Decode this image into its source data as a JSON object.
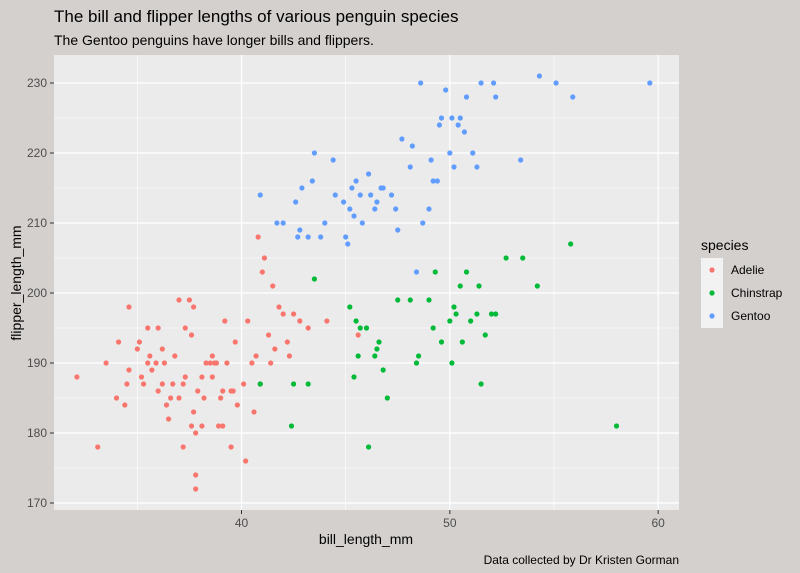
{
  "chart_data": {
    "type": "scatter",
    "title": "The bill and flipper lengths of various penguin species",
    "subtitle": "The Gentoo penguins have longer bills and flippers.",
    "caption": "Data collected by Dr Kristen Gorman",
    "xlabel": "bill_length_mm",
    "ylabel": "flipper_length_mm",
    "xlim": [
      31,
      61
    ],
    "ylim": [
      169,
      234
    ],
    "x_ticks": [
      40,
      50,
      60
    ],
    "y_ticks": [
      170,
      180,
      190,
      200,
      210,
      220,
      230
    ],
    "grid": true,
    "legend": {
      "title": "species",
      "position": "right"
    },
    "series": [
      {
        "name": "Adelie",
        "color": "#f8766d",
        "points": [
          [
            32.1,
            188
          ],
          [
            33.1,
            178
          ],
          [
            33.5,
            190
          ],
          [
            34.0,
            185
          ],
          [
            34.1,
            193
          ],
          [
            34.4,
            184
          ],
          [
            34.5,
            187
          ],
          [
            34.6,
            198
          ],
          [
            34.6,
            189
          ],
          [
            35.0,
            192
          ],
          [
            35.1,
            193
          ],
          [
            35.2,
            188
          ],
          [
            35.3,
            187
          ],
          [
            35.5,
            195
          ],
          [
            35.5,
            190
          ],
          [
            35.6,
            191
          ],
          [
            35.7,
            189
          ],
          [
            35.9,
            190
          ],
          [
            36.0,
            186
          ],
          [
            36.0,
            195
          ],
          [
            36.2,
            187
          ],
          [
            36.2,
            192
          ],
          [
            36.3,
            190
          ],
          [
            36.4,
            184
          ],
          [
            36.5,
            182
          ],
          [
            36.6,
            185
          ],
          [
            36.7,
            187
          ],
          [
            36.8,
            191
          ],
          [
            37.0,
            185
          ],
          [
            37.0,
            199
          ],
          [
            37.2,
            178
          ],
          [
            37.2,
            187
          ],
          [
            37.3,
            195
          ],
          [
            37.3,
            188
          ],
          [
            37.5,
            199
          ],
          [
            37.6,
            181
          ],
          [
            37.6,
            194
          ],
          [
            37.7,
            183
          ],
          [
            37.7,
            198
          ],
          [
            37.8,
            174
          ],
          [
            37.8,
            172
          ],
          [
            37.8,
            180
          ],
          [
            37.9,
            186
          ],
          [
            38.1,
            181
          ],
          [
            38.1,
            188
          ],
          [
            38.2,
            185
          ],
          [
            38.3,
            190
          ],
          [
            38.5,
            190
          ],
          [
            38.6,
            191
          ],
          [
            38.6,
            188
          ],
          [
            38.7,
            190
          ],
          [
            38.8,
            190
          ],
          [
            38.9,
            181
          ],
          [
            39.0,
            185
          ],
          [
            39.1,
            181
          ],
          [
            39.1,
            186
          ],
          [
            39.2,
            196
          ],
          [
            39.3,
            190
          ],
          [
            39.5,
            178
          ],
          [
            39.5,
            186
          ],
          [
            39.6,
            186
          ],
          [
            39.7,
            193
          ],
          [
            39.8,
            184
          ],
          [
            40.1,
            187
          ],
          [
            40.2,
            176
          ],
          [
            40.3,
            196
          ],
          [
            40.5,
            190
          ],
          [
            40.6,
            183
          ],
          [
            40.7,
            191
          ],
          [
            40.8,
            208
          ],
          [
            40.9,
            187
          ],
          [
            41.0,
            203
          ],
          [
            41.1,
            205
          ],
          [
            41.3,
            194
          ],
          [
            41.4,
            190
          ],
          [
            41.5,
            201
          ],
          [
            41.6,
            192
          ],
          [
            41.8,
            198
          ],
          [
            42.0,
            197
          ],
          [
            42.2,
            193
          ],
          [
            42.3,
            191
          ],
          [
            42.5,
            197
          ],
          [
            42.8,
            196
          ],
          [
            43.2,
            195
          ],
          [
            44.1,
            196
          ],
          [
            45.6,
            194
          ]
        ]
      },
      {
        "name": "Chinstrap",
        "color": "#00ba38",
        "points": [
          [
            40.9,
            187
          ],
          [
            42.4,
            181
          ],
          [
            42.5,
            187
          ],
          [
            43.2,
            187
          ],
          [
            43.5,
            202
          ],
          [
            45.2,
            198
          ],
          [
            45.4,
            188
          ],
          [
            45.5,
            196
          ],
          [
            45.6,
            191
          ],
          [
            45.7,
            195
          ],
          [
            46.0,
            195
          ],
          [
            46.1,
            178
          ],
          [
            46.4,
            191
          ],
          [
            46.5,
            192
          ],
          [
            46.6,
            193
          ],
          [
            46.8,
            189
          ],
          [
            47.0,
            185
          ],
          [
            47.5,
            199
          ],
          [
            48.1,
            199
          ],
          [
            48.4,
            190
          ],
          [
            48.5,
            191
          ],
          [
            49.0,
            199
          ],
          [
            49.2,
            195
          ],
          [
            49.3,
            203
          ],
          [
            49.6,
            193
          ],
          [
            50.0,
            196
          ],
          [
            50.1,
            190
          ],
          [
            50.2,
            198
          ],
          [
            50.3,
            197
          ],
          [
            50.5,
            201
          ],
          [
            50.6,
            193
          ],
          [
            50.8,
            203
          ],
          [
            51.0,
            196
          ],
          [
            51.3,
            197
          ],
          [
            51.4,
            201
          ],
          [
            51.5,
            187
          ],
          [
            51.7,
            194
          ],
          [
            52.0,
            197
          ],
          [
            52.2,
            197
          ],
          [
            52.7,
            205
          ],
          [
            53.5,
            205
          ],
          [
            54.2,
            201
          ],
          [
            55.8,
            207
          ],
          [
            58.0,
            181
          ]
        ]
      },
      {
        "name": "Gentoo",
        "color": "#619cff",
        "points": [
          [
            40.9,
            214
          ],
          [
            41.7,
            210
          ],
          [
            42.0,
            210
          ],
          [
            42.6,
            213
          ],
          [
            42.7,
            208
          ],
          [
            42.8,
            209
          ],
          [
            42.9,
            215
          ],
          [
            43.2,
            208
          ],
          [
            43.4,
            216
          ],
          [
            43.5,
            220
          ],
          [
            43.8,
            208
          ],
          [
            44.0,
            210
          ],
          [
            44.4,
            219
          ],
          [
            44.5,
            214
          ],
          [
            44.9,
            213
          ],
          [
            45.0,
            208
          ],
          [
            45.1,
            207
          ],
          [
            45.2,
            212
          ],
          [
            45.3,
            215
          ],
          [
            45.4,
            211
          ],
          [
            45.5,
            216
          ],
          [
            45.7,
            214
          ],
          [
            45.8,
            210
          ],
          [
            46.1,
            217
          ],
          [
            46.2,
            214
          ],
          [
            46.4,
            212
          ],
          [
            46.5,
            213
          ],
          [
            46.7,
            215
          ],
          [
            46.8,
            215
          ],
          [
            47.2,
            214
          ],
          [
            47.4,
            212
          ],
          [
            47.5,
            209
          ],
          [
            47.7,
            222
          ],
          [
            48.1,
            218
          ],
          [
            48.2,
            221
          ],
          [
            48.4,
            203
          ],
          [
            48.6,
            230
          ],
          [
            48.7,
            210
          ],
          [
            49.0,
            212
          ],
          [
            49.1,
            219
          ],
          [
            49.2,
            216
          ],
          [
            49.4,
            216
          ],
          [
            49.5,
            224
          ],
          [
            49.6,
            225
          ],
          [
            49.8,
            229
          ],
          [
            50.0,
            220
          ],
          [
            50.1,
            225
          ],
          [
            50.2,
            218
          ],
          [
            50.4,
            224
          ],
          [
            50.5,
            225
          ],
          [
            50.7,
            223
          ],
          [
            50.8,
            228
          ],
          [
            51.1,
            220
          ],
          [
            51.3,
            218
          ],
          [
            51.5,
            230
          ],
          [
            52.1,
            230
          ],
          [
            52.2,
            228
          ],
          [
            53.4,
            219
          ],
          [
            54.3,
            231
          ],
          [
            55.1,
            230
          ],
          [
            55.9,
            228
          ],
          [
            59.6,
            230
          ]
        ]
      }
    ]
  }
}
